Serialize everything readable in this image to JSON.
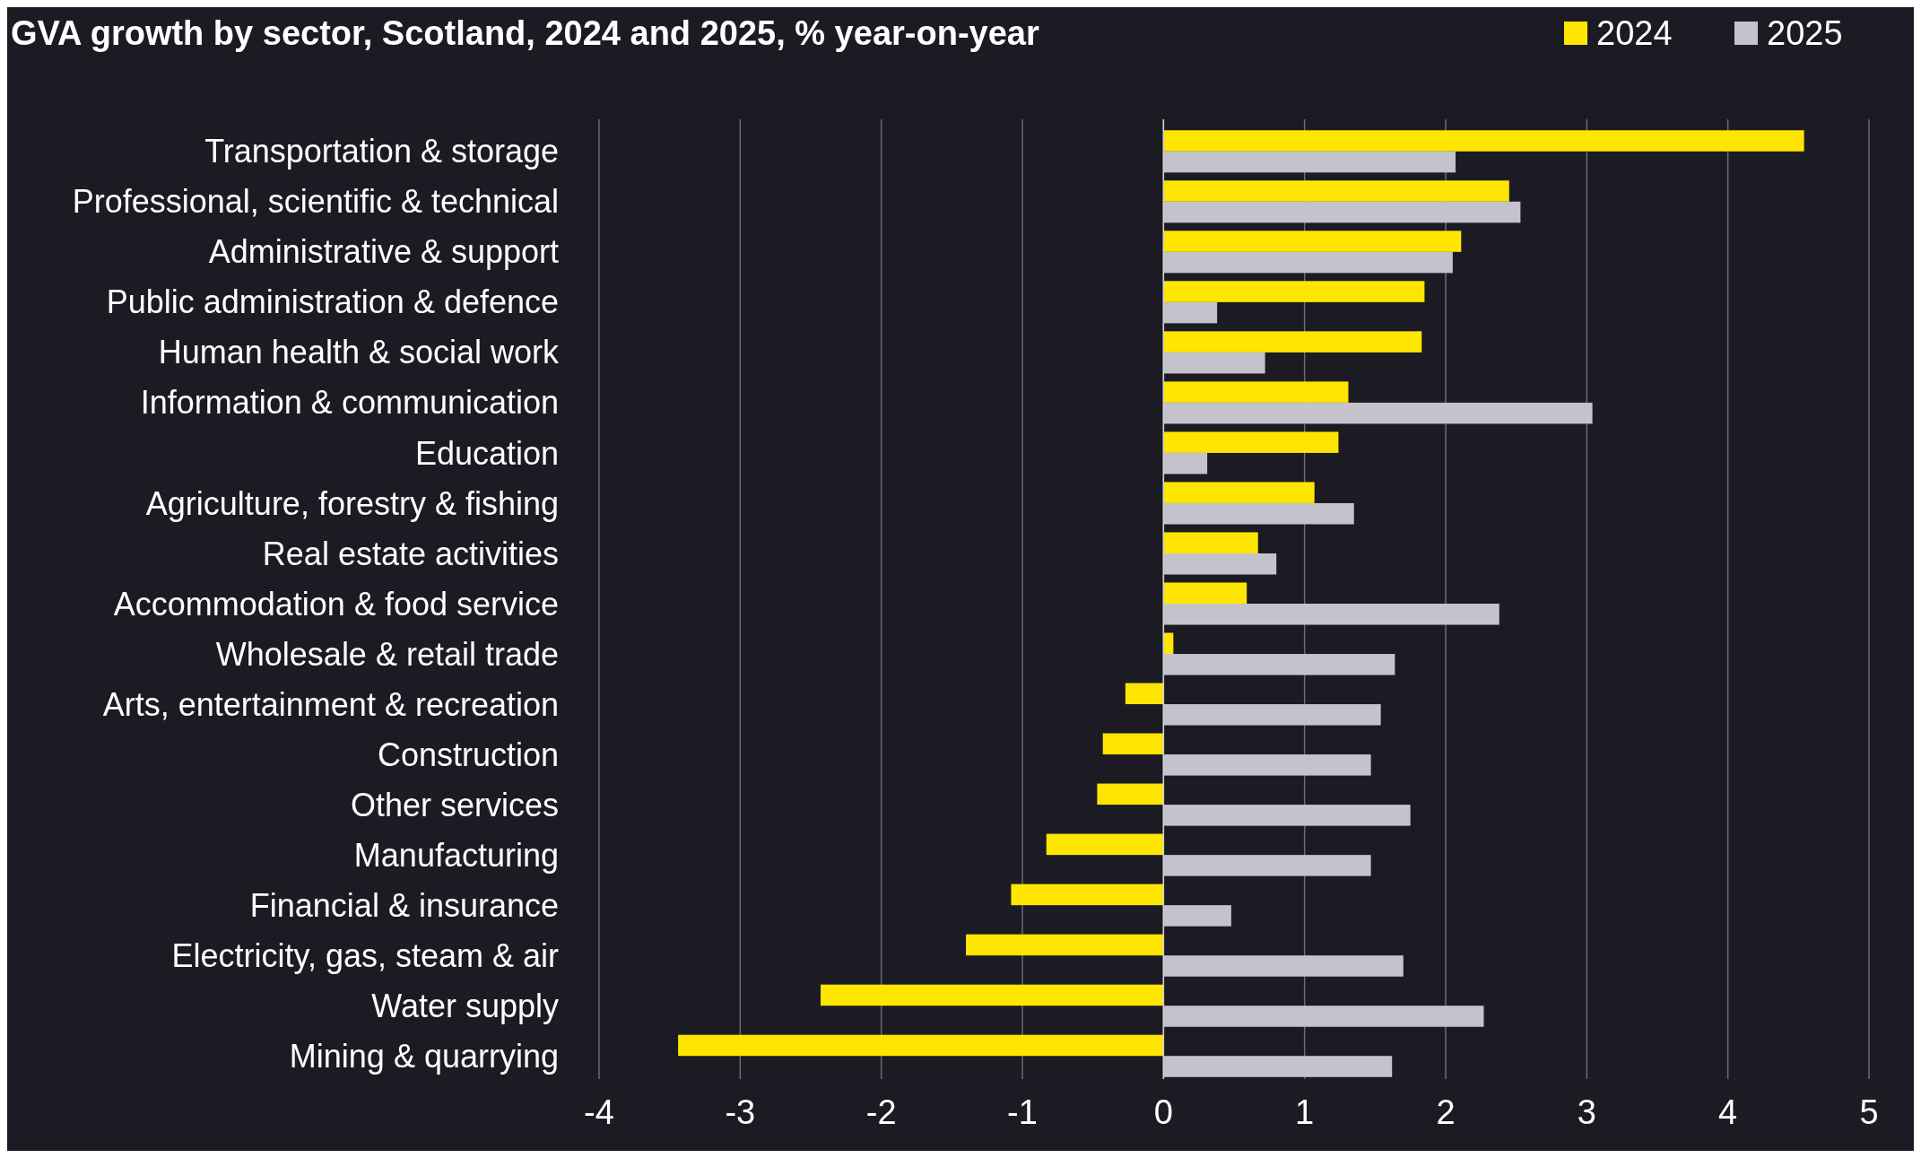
{
  "chart_data": {
    "type": "bar",
    "orientation": "horizontal",
    "title": "GVA growth by sector, Scotland, 2024 and 2025, % year-on-year",
    "categories": [
      "Transportation & storage",
      "Professional, scientific & technical",
      "Administrative & support",
      "Public administration & defence",
      "Human health & social work",
      "Information & communication",
      "Education",
      "Agriculture, forestry & fishing",
      "Real estate activities",
      "Accommodation & food service",
      "Wholesale & retail trade",
      "Arts, entertainment & recreation",
      "Construction",
      "Other services",
      "Manufacturing",
      "Financial & insurance",
      "Electricity, gas, steam & air",
      "Water supply",
      "Mining & quarrying"
    ],
    "series": [
      {
        "name": "2024",
        "color": "#ffe600",
        "values": [
          4.54,
          2.45,
          2.11,
          1.85,
          1.83,
          1.31,
          1.24,
          1.07,
          0.67,
          0.59,
          0.07,
          -0.27,
          -0.43,
          -0.47,
          -0.83,
          -1.08,
          -1.4,
          -2.43,
          -3.44
        ]
      },
      {
        "name": "2025",
        "color": "#c4c3cc",
        "values": [
          2.07,
          2.53,
          2.05,
          0.38,
          0.72,
          3.04,
          0.31,
          1.35,
          0.8,
          2.38,
          1.64,
          1.54,
          1.47,
          1.75,
          1.47,
          0.48,
          1.7,
          2.27,
          1.62
        ]
      }
    ],
    "xlim": [
      -4,
      5
    ],
    "xticks": [
      -4,
      -3,
      -2,
      -1,
      0,
      1,
      2,
      3,
      4,
      5
    ],
    "grid": "x",
    "legend": "top right"
  }
}
